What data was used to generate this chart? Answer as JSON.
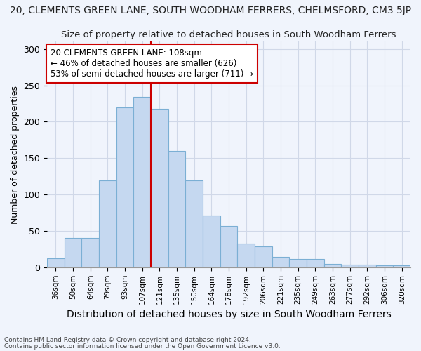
{
  "title": "20, CLEMENTS GREEN LANE, SOUTH WOODHAM FERRERS, CHELMSFORD, CM3 5JP",
  "subtitle": "Size of property relative to detached houses in South Woodham Ferrers",
  "xlabel": "Distribution of detached houses by size in South Woodham Ferrers",
  "ylabel": "Number of detached properties",
  "categories": [
    "36sqm",
    "50sqm",
    "64sqm",
    "79sqm",
    "93sqm",
    "107sqm",
    "121sqm",
    "135sqm",
    "150sqm",
    "164sqm",
    "178sqm",
    "192sqm",
    "206sqm",
    "221sqm",
    "235sqm",
    "249sqm",
    "263sqm",
    "277sqm",
    "292sqm",
    "306sqm",
    "320sqm"
  ],
  "values": [
    12,
    40,
    40,
    119,
    220,
    234,
    218,
    160,
    119,
    71,
    57,
    33,
    29,
    14,
    11,
    11,
    5,
    4,
    4,
    3,
    3
  ],
  "bar_color": "#c5d8f0",
  "bar_edge_color": "#7bafd4",
  "vline_x": 5,
  "vline_color": "#cc0000",
  "annotation_text": "20 CLEMENTS GREEN LANE: 108sqm\n← 46% of detached houses are smaller (626)\n53% of semi-detached houses are larger (711) →",
  "annotation_box_color": "#ffffff",
  "annotation_box_edge": "#cc0000",
  "ylim": [
    0,
    310
  ],
  "yticks": [
    0,
    50,
    100,
    150,
    200,
    250,
    300
  ],
  "grid_color": "#d0d8e8",
  "background_color": "#f0f4fc",
  "footnote1": "Contains HM Land Registry data © Crown copyright and database right 2024.",
  "footnote2": "Contains public sector information licensed under the Open Government Licence v3.0."
}
